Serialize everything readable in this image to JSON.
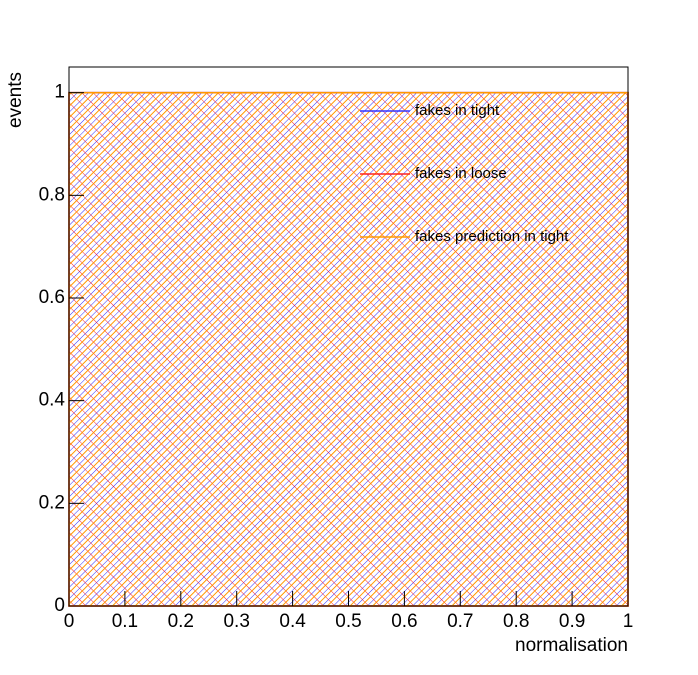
{
  "chart_data": {
    "type": "histogram",
    "x_label": "normalisation",
    "y_label": "events",
    "bins": [
      0,
      1
    ],
    "series": [
      {
        "name": "fakes in tight",
        "color": "#3333ff",
        "values": [
          1
        ]
      },
      {
        "name": "fakes in loose",
        "color": "#ff2222",
        "values": [
          1
        ]
      },
      {
        "name": "fakes prediction in tight",
        "color": "#ff9900",
        "values": [
          1
        ]
      }
    ],
    "xlim": [
      0,
      1
    ],
    "xticks": [
      0,
      0.1,
      0.2,
      0.3,
      0.4,
      0.5,
      0.6,
      0.7,
      0.8,
      0.9,
      1
    ],
    "ylim": [
      0,
      1.05
    ],
    "yticks": [
      0,
      0.2,
      0.4,
      0.6,
      0.8,
      1
    ],
    "legend": "upper right"
  }
}
